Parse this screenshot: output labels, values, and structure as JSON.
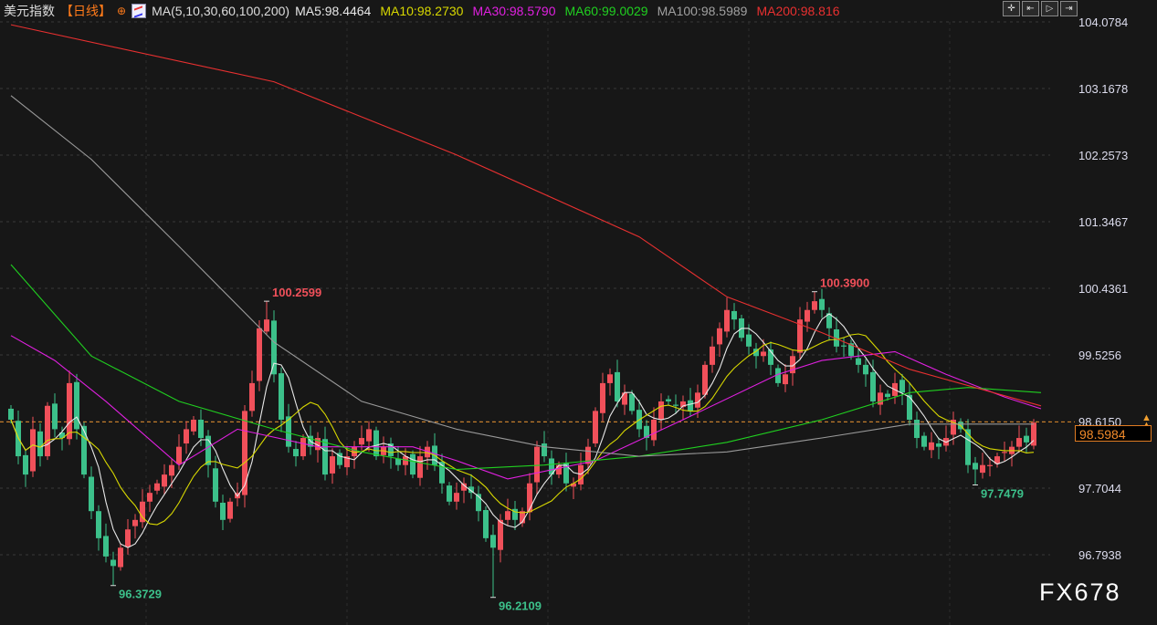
{
  "header": {
    "title": "美元指数",
    "period": "【日线】",
    "globe_icon": "globe-icon",
    "ma_params": "MA(5,10,30,60,100,200)",
    "ma_values": [
      {
        "label": "MA5:98.4464",
        "color": "#e8e8e8"
      },
      {
        "label": "MA10:98.2730",
        "color": "#d8d800"
      },
      {
        "label": "MA30:98.5790",
        "color": "#e020e0"
      },
      {
        "label": "MA60:99.0029",
        "color": "#20d020"
      },
      {
        "label": "MA100:98.5989",
        "color": "#a0a0a0"
      },
      {
        "label": "MA200:98.816",
        "color": "#e83030"
      }
    ]
  },
  "toolbar": [
    {
      "icon": "crosshair-icon",
      "glyph": "✛"
    },
    {
      "icon": "zoom-range-icon",
      "glyph": "⇤"
    },
    {
      "icon": "play-icon",
      "glyph": "▷"
    },
    {
      "icon": "move-right-icon",
      "glyph": "⇥"
    }
  ],
  "current_price": "98.5984",
  "watermark": "FX678",
  "chart_data": {
    "type": "candlestick",
    "title": "美元指数",
    "ylim": [
      96.7938,
      104.0784
    ],
    "y_ticks": [
      "104.0784",
      "103.1678",
      "102.2573",
      "101.3467",
      "100.4361",
      "99.5256",
      "98.6150",
      "97.7044",
      "96.7938"
    ],
    "grid": true,
    "up_color": "#f0505a",
    "down_color": "#3cc08a",
    "closes": [
      98.64,
      98.14,
      97.89,
      98.51,
      98.14,
      98.83,
      98.51,
      98.39,
      99.14,
      98.51,
      97.89,
      97.39,
      97.02,
      96.77,
      96.64,
      96.89,
      97.14,
      97.27,
      97.52,
      97.64,
      97.77,
      97.89,
      98.02,
      98.27,
      98.51,
      98.64,
      98.39,
      98.02,
      97.52,
      97.27,
      97.52,
      97.64,
      98.76,
      99.14,
      99.89,
      100.01,
      99.26,
      98.64,
      98.27,
      98.14,
      98.39,
      98.27,
      98.39,
      97.89,
      98.14,
      98.02,
      98.14,
      98.27,
      98.39,
      98.51,
      98.14,
      98.27,
      98.14,
      98.02,
      98.14,
      97.89,
      98.14,
      98.27,
      98.02,
      97.77,
      97.52,
      97.64,
      97.77,
      97.64,
      97.39,
      97.02,
      96.89,
      97.27,
      97.39,
      97.27,
      97.39,
      97.77,
      98.27,
      98.14,
      97.89,
      98.02,
      97.77,
      97.77,
      98.02,
      98.27,
      98.76,
      99.14,
      99.26,
      98.89,
      99.01,
      98.76,
      98.51,
      98.39,
      98.64,
      98.89,
      98.89,
      98.83,
      98.89,
      98.76,
      99.01,
      99.39,
      99.64,
      99.89,
      100.14,
      100.01,
      99.76,
      99.64,
      99.51,
      99.57,
      99.39,
      99.14,
      99.26,
      99.51,
      100.01,
      100.14,
      100.26,
      100.14,
      99.89,
      99.64,
      99.64,
      99.51,
      99.39,
      99.26,
      98.89,
      99.01,
      98.95,
      99.14,
      99.01,
      98.64,
      98.39,
      98.27,
      98.33,
      98.27,
      98.39,
      98.64,
      98.51,
      98.02,
      97.96,
      98.02,
      98.02,
      98.14,
      98.2,
      98.27,
      98.39,
      98.33,
      98.6
    ],
    "annotations": [
      {
        "index": 35,
        "value": 100.2599,
        "label": "100.2599",
        "kind": "high"
      },
      {
        "index": 14,
        "value": 96.3729,
        "label": "96.3729",
        "kind": "low"
      },
      {
        "index": 66,
        "value": 96.2109,
        "label": "96.2109",
        "kind": "low"
      },
      {
        "index": 110,
        "value": 100.39,
        "label": "100.3900",
        "kind": "high"
      },
      {
        "index": 132,
        "value": 97.7479,
        "label": "97.7479",
        "kind": "low"
      }
    ],
    "moving_averages": [
      {
        "name": "MA5",
        "period": 5,
        "color": "#e8e8e8"
      },
      {
        "name": "MA10",
        "period": 10,
        "color": "#d8d800"
      },
      {
        "name": "MA30",
        "color": "#e020e0",
        "points": [
          [
            0,
            99.79
          ],
          [
            6,
            99.45
          ],
          [
            13,
            98.89
          ],
          [
            23,
            98.02
          ],
          [
            31,
            98.51
          ],
          [
            42,
            98.27
          ],
          [
            55,
            98.27
          ],
          [
            61,
            98.08
          ],
          [
            68,
            97.83
          ],
          [
            80,
            98.08
          ],
          [
            92,
            98.64
          ],
          [
            105,
            99.26
          ],
          [
            111,
            99.45
          ],
          [
            121,
            99.57
          ],
          [
            128,
            99.26
          ],
          [
            136,
            98.95
          ],
          [
            141,
            98.79
          ]
        ]
      },
      {
        "name": "MA60",
        "color": "#20d020",
        "points": [
          [
            0,
            100.76
          ],
          [
            11,
            99.51
          ],
          [
            23,
            98.89
          ],
          [
            36,
            98.51
          ],
          [
            48,
            98.2
          ],
          [
            61,
            97.96
          ],
          [
            73,
            98.02
          ],
          [
            86,
            98.14
          ],
          [
            98,
            98.33
          ],
          [
            111,
            98.64
          ],
          [
            123,
            99.01
          ],
          [
            131,
            99.08
          ],
          [
            141,
            99.01
          ]
        ]
      },
      {
        "name": "MA100",
        "color": "#9a9a9a",
        "points": [
          [
            0,
            103.07
          ],
          [
            11,
            102.2
          ],
          [
            23,
            101.01
          ],
          [
            36,
            99.7
          ],
          [
            48,
            98.89
          ],
          [
            61,
            98.51
          ],
          [
            73,
            98.27
          ],
          [
            86,
            98.14
          ],
          [
            98,
            98.2
          ],
          [
            111,
            98.39
          ],
          [
            123,
            98.58
          ],
          [
            140,
            98.58
          ]
        ]
      },
      {
        "name": "MA200",
        "color": "#e83030",
        "points": [
          [
            0,
            104.04
          ],
          [
            36,
            103.26
          ],
          [
            61,
            102.26
          ],
          [
            86,
            101.14
          ],
          [
            98,
            100.32
          ],
          [
            111,
            99.83
          ],
          [
            123,
            99.33
          ],
          [
            141,
            98.83
          ]
        ]
      }
    ]
  }
}
